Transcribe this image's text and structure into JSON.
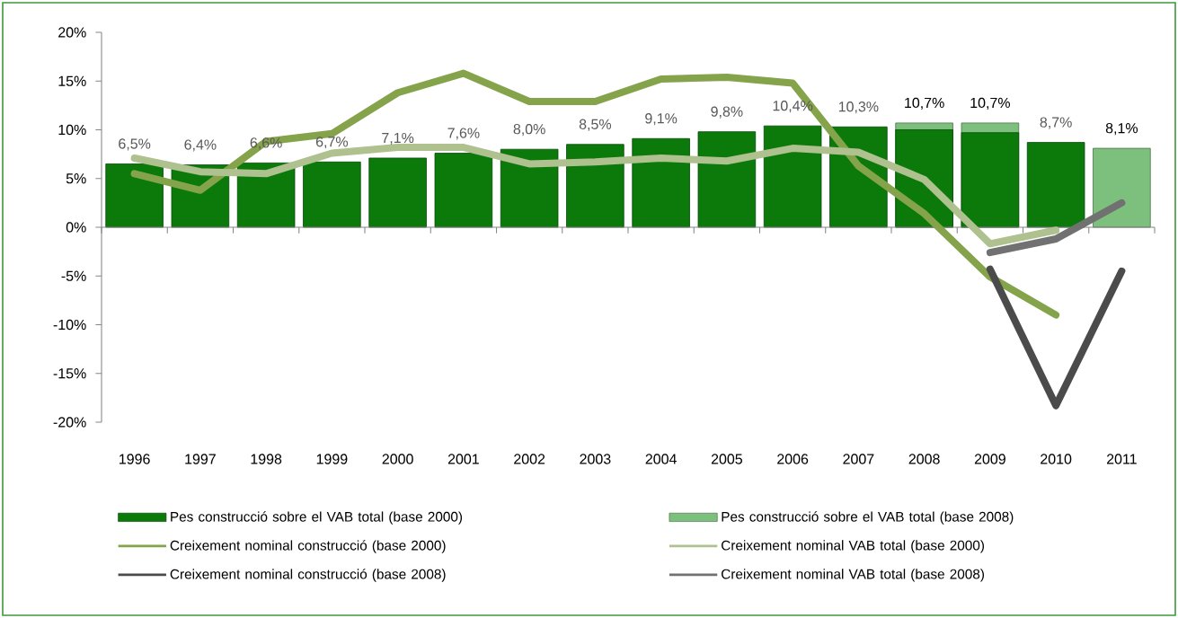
{
  "chart_data": {
    "type": "bar",
    "categories": [
      "1996",
      "1997",
      "1998",
      "1999",
      "2000",
      "2001",
      "2002",
      "2003",
      "2004",
      "2005",
      "2006",
      "2007",
      "2008",
      "2009",
      "2010",
      "2011"
    ],
    "ylim": [
      -20,
      20
    ],
    "yticks": [
      {
        "value": -20,
        "label": "-20%"
      },
      {
        "value": -15,
        "label": "-15%"
      },
      {
        "value": -10,
        "label": "-10%"
      },
      {
        "value": -5,
        "label": "-5%"
      },
      {
        "value": 0,
        "label": "0%"
      },
      {
        "value": 5,
        "label": "5%"
      },
      {
        "value": 10,
        "label": "10%"
      },
      {
        "value": 15,
        "label": "15%"
      },
      {
        "value": 20,
        "label": "20%"
      }
    ],
    "legend": "bottom",
    "marker": "none",
    "line_style": "solid",
    "series": [
      {
        "name": "Pes construcció sobre el VAB total (base 2000)",
        "color": "#0b7a0b",
        "values": [
          6.5,
          6.4,
          6.6,
          6.7,
          7.1,
          7.6,
          8.0,
          8.5,
          9.1,
          9.8,
          10.4,
          10.3,
          10.0,
          9.7,
          8.7,
          null
        ],
        "value_labels": [
          "6,5%",
          "6,4%",
          "6,6%",
          "6,7%",
          "7,1%",
          "7,6%",
          "8,0%",
          "8,5%",
          "9,1%",
          "9,8%",
          "10,4%",
          "10,3%",
          null,
          null,
          "8,7%",
          null
        ]
      },
      {
        "name": "Pes construcció sobre el VAB total (base 2008)",
        "color": "#7dbf7d",
        "values": [
          null,
          null,
          null,
          null,
          null,
          null,
          null,
          null,
          null,
          null,
          null,
          null,
          10.7,
          10.7,
          null,
          8.1
        ],
        "value_labels": [
          null,
          null,
          null,
          null,
          null,
          null,
          null,
          null,
          null,
          null,
          null,
          null,
          "10,7%",
          "10,7%",
          null,
          "8,1%"
        ]
      },
      {
        "name": "Creixement nominal construcció (base 2000)",
        "type": "line",
        "color": "#84a34a",
        "values": [
          5.5,
          3.8,
          8.8,
          9.6,
          13.8,
          15.8,
          12.9,
          12.9,
          15.2,
          15.4,
          14.8,
          6.3,
          1.4,
          -5.1,
          -9.0,
          null
        ]
      },
      {
        "name": "Creixement nominal VAB total (base 2000)",
        "type": "line",
        "color": "#aec18f",
        "values": [
          7.1,
          5.7,
          5.5,
          7.6,
          8.2,
          8.2,
          6.5,
          6.7,
          7.1,
          6.8,
          8.1,
          7.7,
          4.9,
          -1.7,
          -0.3,
          null
        ]
      },
      {
        "name": "Creixement nominal construcció (base 2008)",
        "type": "line",
        "color": "#4b4b4b",
        "values": [
          null,
          null,
          null,
          null,
          null,
          null,
          null,
          null,
          null,
          null,
          null,
          null,
          null,
          -4.3,
          -18.3,
          -4.5
        ]
      },
      {
        "name": "Creixement nominal VAB total (base 2008)",
        "type": "line",
        "color": "#717171",
        "values": [
          null,
          null,
          null,
          null,
          null,
          null,
          null,
          null,
          null,
          null,
          null,
          null,
          null,
          -2.6,
          -1.2,
          2.5
        ]
      }
    ]
  }
}
